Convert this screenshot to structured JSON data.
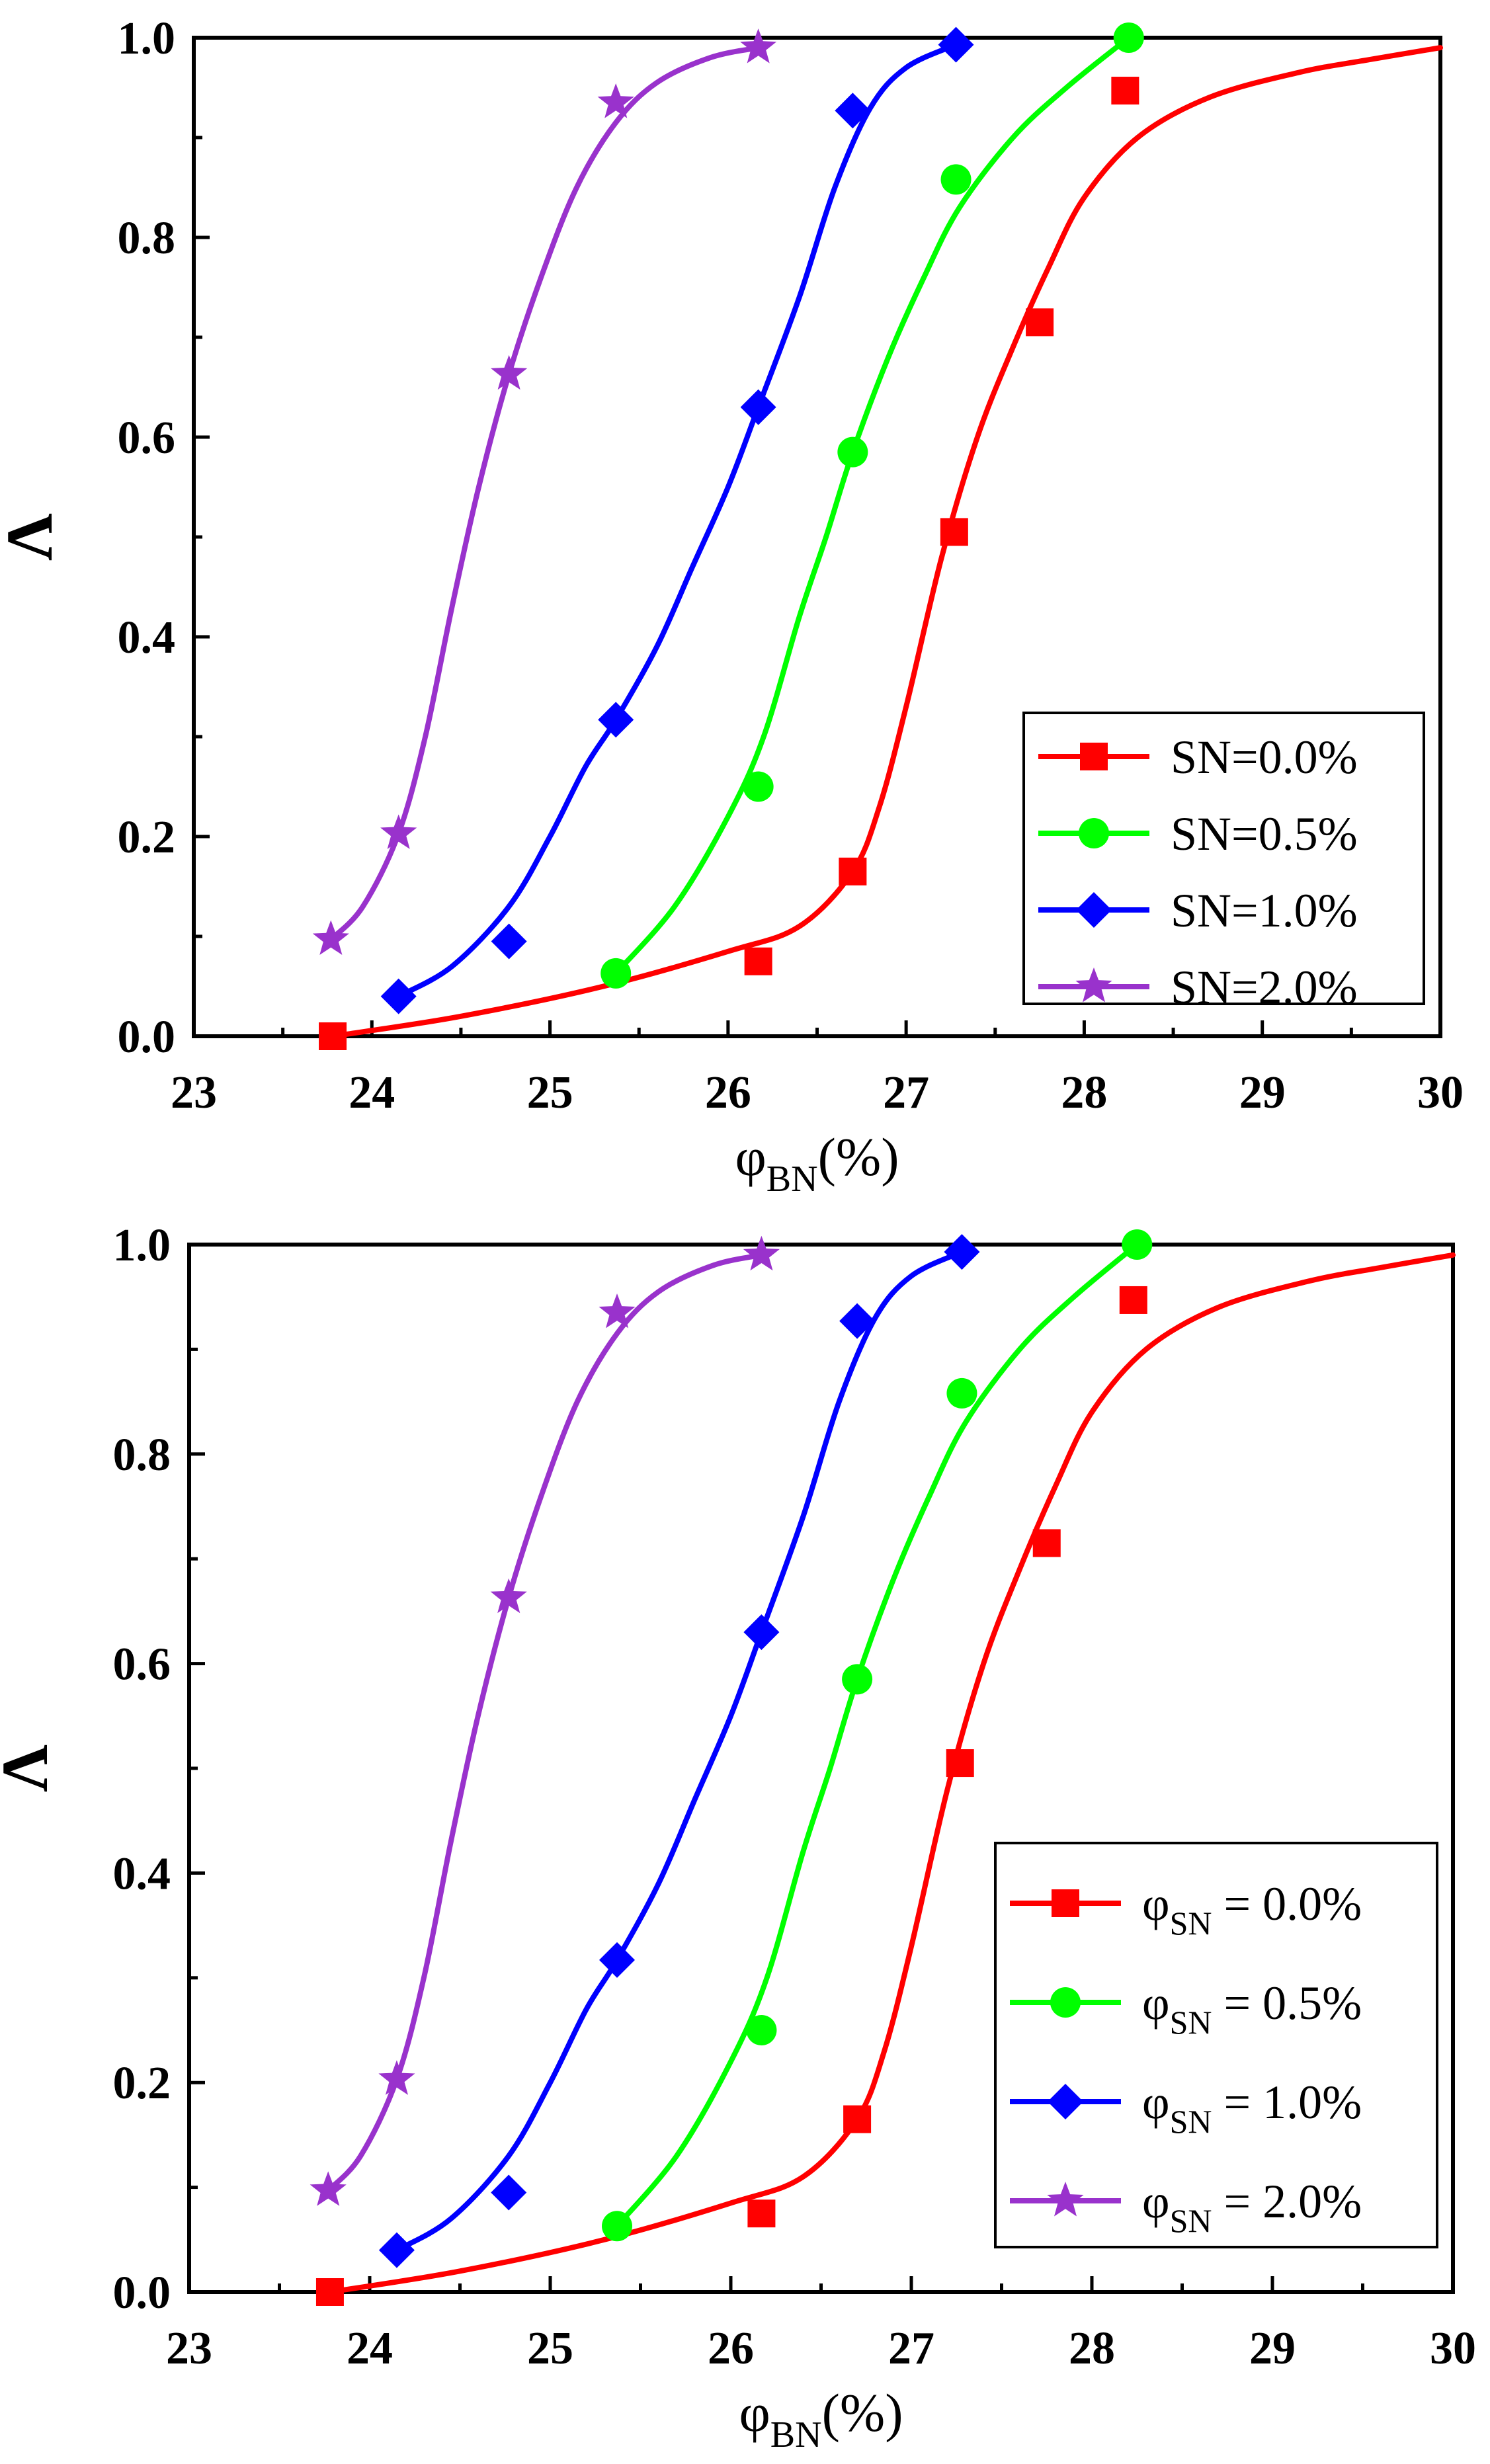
{
  "chart_data": [
    {
      "type": "line",
      "xlabel_main": "φ",
      "xlabel_sub": "BN",
      "xlabel_suffix": "(%)",
      "ylabel": "Λ",
      "xlim": [
        23,
        30
      ],
      "ylim": [
        0,
        1.0
      ],
      "xticks": [
        23,
        24,
        25,
        26,
        27,
        28,
        29,
        30
      ],
      "xtick_labels": [
        "23",
        "24",
        "25",
        "26",
        "27",
        "28",
        "29",
        "30"
      ],
      "yticks": [
        0,
        0.2,
        0.4,
        0.6,
        0.8,
        1.0
      ],
      "ytick_labels": [
        "0.0",
        "0.2",
        "0.4",
        "0.6",
        "0.8",
        "1.0"
      ],
      "legend_position": "bottom-right",
      "series": [
        {
          "name": "SN=0.0%",
          "label_main": "SN=0.0%",
          "label_sub": "",
          "label_suffix": "",
          "color": "#ff0000",
          "marker": "square",
          "points": [
            [
              23.78,
              0.0
            ],
            [
              26.17,
              0.075
            ],
            [
              26.7,
              0.165
            ],
            [
              27.27,
              0.505
            ],
            [
              27.75,
              0.715
            ],
            [
              28.23,
              0.947
            ]
          ],
          "curve": [
            [
              23.78,
              0.0
            ],
            [
              24.5,
              0.02
            ],
            [
              25.3,
              0.05
            ],
            [
              26.0,
              0.085
            ],
            [
              26.4,
              0.11
            ],
            [
              26.7,
              0.165
            ],
            [
              26.85,
              0.23
            ],
            [
              27.0,
              0.33
            ],
            [
              27.2,
              0.48
            ],
            [
              27.4,
              0.6
            ],
            [
              27.6,
              0.69
            ],
            [
              27.8,
              0.77
            ],
            [
              28.0,
              0.84
            ],
            [
              28.3,
              0.9
            ],
            [
              28.7,
              0.94
            ],
            [
              29.2,
              0.965
            ],
            [
              29.6,
              0.978
            ],
            [
              30.0,
              0.99
            ]
          ]
        },
        {
          "name": "SN=0.5%",
          "label_main": "SN=0.5%",
          "label_sub": "",
          "label_suffix": "",
          "color": "#00ff00",
          "marker": "circle",
          "points": [
            [
              25.37,
              0.063
            ],
            [
              26.17,
              0.25
            ],
            [
              26.7,
              0.585
            ],
            [
              27.28,
              0.858
            ],
            [
              28.25,
              1.0
            ]
          ],
          "curve": [
            [
              25.37,
              0.063
            ],
            [
              25.7,
              0.13
            ],
            [
              26.0,
              0.22
            ],
            [
              26.2,
              0.3
            ],
            [
              26.4,
              0.42
            ],
            [
              26.55,
              0.5
            ],
            [
              26.7,
              0.585
            ],
            [
              26.9,
              0.68
            ],
            [
              27.1,
              0.76
            ],
            [
              27.3,
              0.83
            ],
            [
              27.6,
              0.9
            ],
            [
              27.9,
              0.95
            ],
            [
              28.25,
              1.0
            ]
          ]
        },
        {
          "name": "SN=1.0%",
          "label_main": "SN=1.0%",
          "label_sub": "",
          "label_suffix": "",
          "color": "#0000ff",
          "marker": "diamond",
          "points": [
            [
              24.15,
              0.04
            ],
            [
              24.77,
              0.095
            ],
            [
              25.37,
              0.317
            ],
            [
              26.17,
              0.63
            ],
            [
              26.7,
              0.927
            ],
            [
              27.28,
              0.993
            ]
          ],
          "curve": [
            [
              24.15,
              0.04
            ],
            [
              24.45,
              0.07
            ],
            [
              24.77,
              0.13
            ],
            [
              25.0,
              0.2
            ],
            [
              25.2,
              0.27
            ],
            [
              25.37,
              0.317
            ],
            [
              25.6,
              0.39
            ],
            [
              25.8,
              0.47
            ],
            [
              26.0,
              0.55
            ],
            [
              26.17,
              0.63
            ],
            [
              26.4,
              0.74
            ],
            [
              26.6,
              0.85
            ],
            [
              26.8,
              0.93
            ],
            [
              27.0,
              0.97
            ],
            [
              27.28,
              0.993
            ]
          ]
        },
        {
          "name": "SN=2.0%",
          "label_main": "SN=2.0%",
          "label_sub": "",
          "label_suffix": "",
          "color": "#9932cc",
          "marker": "star",
          "points": [
            [
              23.77,
              0.097
            ],
            [
              24.15,
              0.203
            ],
            [
              24.77,
              0.663
            ],
            [
              25.37,
              0.935
            ],
            [
              26.17,
              0.99
            ]
          ],
          "curve": [
            [
              23.77,
              0.097
            ],
            [
              23.95,
              0.13
            ],
            [
              24.15,
              0.203
            ],
            [
              24.3,
              0.3
            ],
            [
              24.45,
              0.43
            ],
            [
              24.6,
              0.55
            ],
            [
              24.77,
              0.663
            ],
            [
              24.95,
              0.76
            ],
            [
              25.15,
              0.85
            ],
            [
              25.37,
              0.915
            ],
            [
              25.6,
              0.955
            ],
            [
              25.9,
              0.98
            ],
            [
              26.17,
              0.99
            ]
          ]
        }
      ]
    },
    {
      "type": "line",
      "xlabel_main": "φ",
      "xlabel_sub": "BN",
      "xlabel_suffix": "(%)",
      "ylabel": "Λ",
      "xlim": [
        23,
        30
      ],
      "ylim": [
        0,
        1.0
      ],
      "xticks": [
        23,
        24,
        25,
        26,
        27,
        28,
        29,
        30
      ],
      "xtick_labels": [
        "23",
        "24",
        "25",
        "26",
        "27",
        "28",
        "29",
        "30"
      ],
      "yticks": [
        0,
        0.2,
        0.4,
        0.6,
        0.8,
        1.0
      ],
      "ytick_labels": [
        "0.0",
        "0.2",
        "0.4",
        "0.6",
        "0.8",
        "1.0"
      ],
      "legend_position": "bottom-right",
      "series": [
        {
          "name": "φSN = 0.0%",
          "label_main": "φ",
          "label_sub": "SN",
          "label_suffix": " = 0.0%",
          "color": "#ff0000",
          "marker": "square",
          "points": [
            [
              23.78,
              0.0
            ],
            [
              26.17,
              0.075
            ],
            [
              26.7,
              0.165
            ],
            [
              27.27,
              0.505
            ],
            [
              27.75,
              0.715
            ],
            [
              28.23,
              0.947
            ]
          ],
          "curve": [
            [
              23.78,
              0.0
            ],
            [
              24.5,
              0.02
            ],
            [
              25.3,
              0.05
            ],
            [
              26.0,
              0.085
            ],
            [
              26.4,
              0.11
            ],
            [
              26.7,
              0.165
            ],
            [
              26.85,
              0.23
            ],
            [
              27.0,
              0.33
            ],
            [
              27.2,
              0.48
            ],
            [
              27.4,
              0.6
            ],
            [
              27.6,
              0.69
            ],
            [
              27.8,
              0.77
            ],
            [
              28.0,
              0.84
            ],
            [
              28.3,
              0.9
            ],
            [
              28.7,
              0.94
            ],
            [
              29.2,
              0.965
            ],
            [
              29.6,
              0.978
            ],
            [
              30.0,
              0.99
            ]
          ]
        },
        {
          "name": "φSN = 0.5%",
          "label_main": "φ",
          "label_sub": "SN",
          "label_suffix": " = 0.5%",
          "color": "#00ff00",
          "marker": "circle",
          "points": [
            [
              25.37,
              0.063
            ],
            [
              26.17,
              0.25
            ],
            [
              26.7,
              0.585
            ],
            [
              27.28,
              0.858
            ],
            [
              28.25,
              1.0
            ]
          ],
          "curve": [
            [
              25.37,
              0.063
            ],
            [
              25.7,
              0.13
            ],
            [
              26.0,
              0.22
            ],
            [
              26.2,
              0.3
            ],
            [
              26.4,
              0.42
            ],
            [
              26.55,
              0.5
            ],
            [
              26.7,
              0.585
            ],
            [
              26.9,
              0.68
            ],
            [
              27.1,
              0.76
            ],
            [
              27.3,
              0.83
            ],
            [
              27.6,
              0.9
            ],
            [
              27.9,
              0.95
            ],
            [
              28.25,
              1.0
            ]
          ]
        },
        {
          "name": "φSN = 1.0%",
          "label_main": "φ",
          "label_sub": "SN",
          "label_suffix": " = 1.0%",
          "color": "#0000ff",
          "marker": "diamond",
          "points": [
            [
              24.15,
              0.04
            ],
            [
              24.77,
              0.095
            ],
            [
              25.37,
              0.317
            ],
            [
              26.17,
              0.63
            ],
            [
              26.7,
              0.927
            ],
            [
              27.28,
              0.993
            ]
          ],
          "curve": [
            [
              24.15,
              0.04
            ],
            [
              24.45,
              0.07
            ],
            [
              24.77,
              0.13
            ],
            [
              25.0,
              0.2
            ],
            [
              25.2,
              0.27
            ],
            [
              25.37,
              0.317
            ],
            [
              25.6,
              0.39
            ],
            [
              25.8,
              0.47
            ],
            [
              26.0,
              0.55
            ],
            [
              26.17,
              0.63
            ],
            [
              26.4,
              0.74
            ],
            [
              26.6,
              0.85
            ],
            [
              26.8,
              0.93
            ],
            [
              27.0,
              0.97
            ],
            [
              27.28,
              0.993
            ]
          ]
        },
        {
          "name": "φSN = 2.0%",
          "label_main": "φ",
          "label_sub": "SN",
          "label_suffix": " = 2.0%",
          "color": "#9932cc",
          "marker": "star",
          "points": [
            [
              23.77,
              0.097
            ],
            [
              24.15,
              0.203
            ],
            [
              24.77,
              0.663
            ],
            [
              25.37,
              0.935
            ],
            [
              26.17,
              0.99
            ]
          ],
          "curve": [
            [
              23.77,
              0.097
            ],
            [
              23.95,
              0.13
            ],
            [
              24.15,
              0.203
            ],
            [
              24.3,
              0.3
            ],
            [
              24.45,
              0.43
            ],
            [
              24.6,
              0.55
            ],
            [
              24.77,
              0.663
            ],
            [
              24.95,
              0.76
            ],
            [
              25.15,
              0.85
            ],
            [
              25.37,
              0.915
            ],
            [
              25.6,
              0.955
            ],
            [
              25.9,
              0.98
            ],
            [
              26.17,
              0.99
            ]
          ]
        }
      ]
    }
  ]
}
